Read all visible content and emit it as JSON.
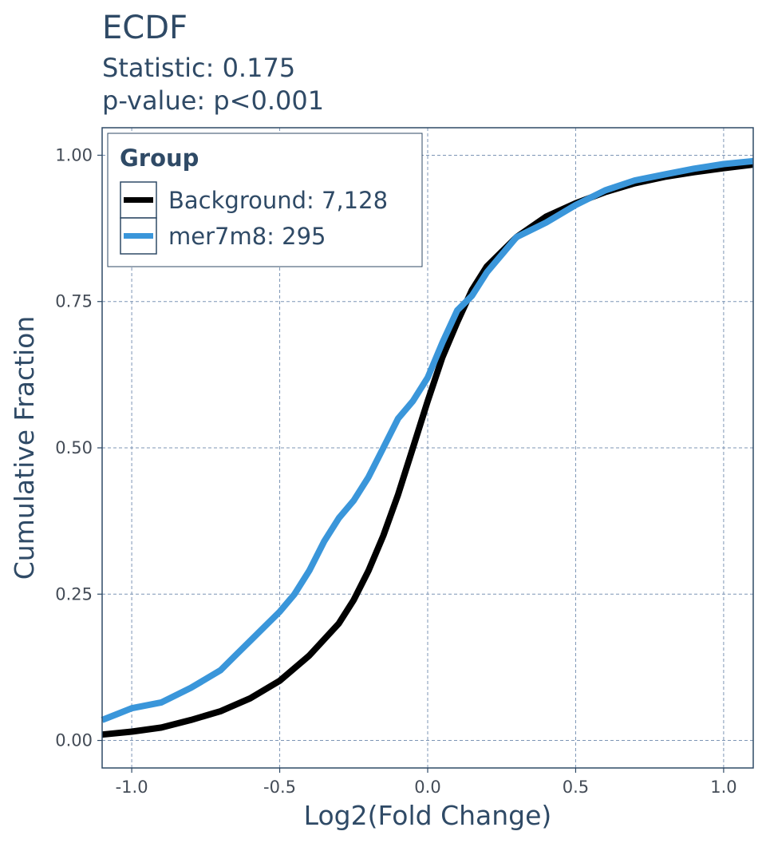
{
  "chart_data": {
    "type": "line",
    "title": "ECDF",
    "subtitle_lines": [
      "Statistic: 0.175",
      "p-value: p<0.001"
    ],
    "xlabel": "Log2(Fold Change)",
    "ylabel": "Cumulative Fraction",
    "xlim": [
      -1.1,
      1.1
    ],
    "ylim": [
      -0.047,
      1.047
    ],
    "x_ticks": [
      -1.0,
      -0.5,
      0.0,
      0.5,
      1.0
    ],
    "x_tick_labels": [
      "-1.0",
      "-0.5",
      "0.0",
      "0.5",
      "1.0"
    ],
    "y_ticks": [
      0.0,
      0.25,
      0.5,
      0.75,
      1.0
    ],
    "y_tick_labels": [
      "0.00",
      "0.25",
      "0.50",
      "0.75",
      "1.00"
    ],
    "grid": true,
    "legend": {
      "title": "Group",
      "position": "top-left",
      "entries": [
        "Background: 7,128",
        "mer7m8: 295"
      ]
    },
    "series": [
      {
        "name": "Background: 7,128",
        "color": "#000000",
        "points": [
          [
            -1.1,
            0.01
          ],
          [
            -1.0,
            0.015
          ],
          [
            -0.9,
            0.022
          ],
          [
            -0.8,
            0.035
          ],
          [
            -0.7,
            0.05
          ],
          [
            -0.6,
            0.072
          ],
          [
            -0.5,
            0.102
          ],
          [
            -0.4,
            0.145
          ],
          [
            -0.3,
            0.2
          ],
          [
            -0.25,
            0.24
          ],
          [
            -0.2,
            0.29
          ],
          [
            -0.15,
            0.35
          ],
          [
            -0.1,
            0.42
          ],
          [
            -0.05,
            0.5
          ],
          [
            0.0,
            0.58
          ],
          [
            0.05,
            0.655
          ],
          [
            0.1,
            0.715
          ],
          [
            0.15,
            0.77
          ],
          [
            0.2,
            0.81
          ],
          [
            0.3,
            0.86
          ],
          [
            0.4,
            0.895
          ],
          [
            0.5,
            0.918
          ],
          [
            0.6,
            0.937
          ],
          [
            0.7,
            0.952
          ],
          [
            0.8,
            0.963
          ],
          [
            0.9,
            0.971
          ],
          [
            1.0,
            0.978
          ],
          [
            1.1,
            0.984
          ]
        ]
      },
      {
        "name": "mer7m8: 295",
        "color": "#3a96da",
        "points": [
          [
            -1.1,
            0.035
          ],
          [
            -1.05,
            0.045
          ],
          [
            -1.0,
            0.055
          ],
          [
            -0.9,
            0.065
          ],
          [
            -0.8,
            0.09
          ],
          [
            -0.7,
            0.12
          ],
          [
            -0.65,
            0.145
          ],
          [
            -0.6,
            0.17
          ],
          [
            -0.5,
            0.22
          ],
          [
            -0.45,
            0.25
          ],
          [
            -0.4,
            0.29
          ],
          [
            -0.35,
            0.34
          ],
          [
            -0.3,
            0.38
          ],
          [
            -0.25,
            0.41
          ],
          [
            -0.2,
            0.45
          ],
          [
            -0.15,
            0.5
          ],
          [
            -0.1,
            0.55
          ],
          [
            -0.05,
            0.58
          ],
          [
            0.0,
            0.62
          ],
          [
            0.05,
            0.68
          ],
          [
            0.1,
            0.735
          ],
          [
            0.15,
            0.76
          ],
          [
            0.2,
            0.8
          ],
          [
            0.3,
            0.86
          ],
          [
            0.4,
            0.885
          ],
          [
            0.5,
            0.915
          ],
          [
            0.6,
            0.94
          ],
          [
            0.7,
            0.957
          ],
          [
            0.8,
            0.967
          ],
          [
            0.9,
            0.977
          ],
          [
            1.0,
            0.985
          ],
          [
            1.1,
            0.99
          ]
        ]
      }
    ]
  }
}
